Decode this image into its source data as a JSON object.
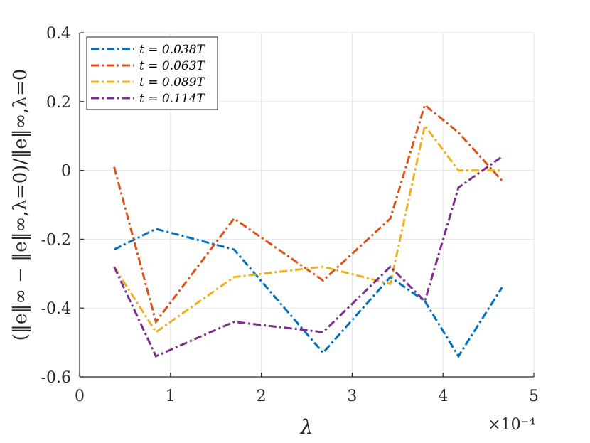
{
  "chart_data": {
    "type": "line",
    "xlabel": "λ",
    "ylabel": "(‖e‖∞ − ‖e‖∞,λ=0)/‖e‖∞,λ=0",
    "x_exponent_label": "×10⁻⁴",
    "xlim": [
      0,
      5
    ],
    "ylim": [
      -0.6,
      0.4
    ],
    "x_ticks": [
      0,
      1,
      2,
      3,
      4,
      5
    ],
    "x_tick_labels": [
      "0",
      "1",
      "2",
      "3",
      "4",
      "5"
    ],
    "y_ticks": [
      -0.6,
      -0.4,
      -0.2,
      0,
      0.2,
      0.4
    ],
    "y_tick_labels": [
      "-0.6",
      "-0.4",
      "-0.2",
      "0",
      "0.2",
      "0.4"
    ],
    "grid": true,
    "legend_position": "top-left",
    "x": [
      0.38,
      0.84,
      1.7,
      2.68,
      3.42,
      3.8,
      4.17,
      4.65
    ],
    "series": [
      {
        "name": "t = 0.038T",
        "color": "#0072BD",
        "values": [
          -0.23,
          -0.17,
          -0.23,
          -0.53,
          -0.31,
          -0.38,
          -0.54,
          -0.34
        ]
      },
      {
        "name": "t = 0.063T",
        "color": "#D95319",
        "values": [
          0.01,
          -0.44,
          -0.14,
          -0.32,
          -0.14,
          0.19,
          0.11,
          -0.03
        ]
      },
      {
        "name": "t = 0.089T",
        "color": "#EDB120",
        "values": [
          -0.28,
          -0.47,
          -0.31,
          -0.28,
          -0.33,
          0.13,
          0.0,
          0.0
        ]
      },
      {
        "name": "t = 0.114T",
        "color": "#7E2F8E",
        "values": [
          -0.28,
          -0.54,
          -0.44,
          -0.47,
          -0.28,
          -0.38,
          -0.05,
          0.04
        ]
      }
    ]
  }
}
